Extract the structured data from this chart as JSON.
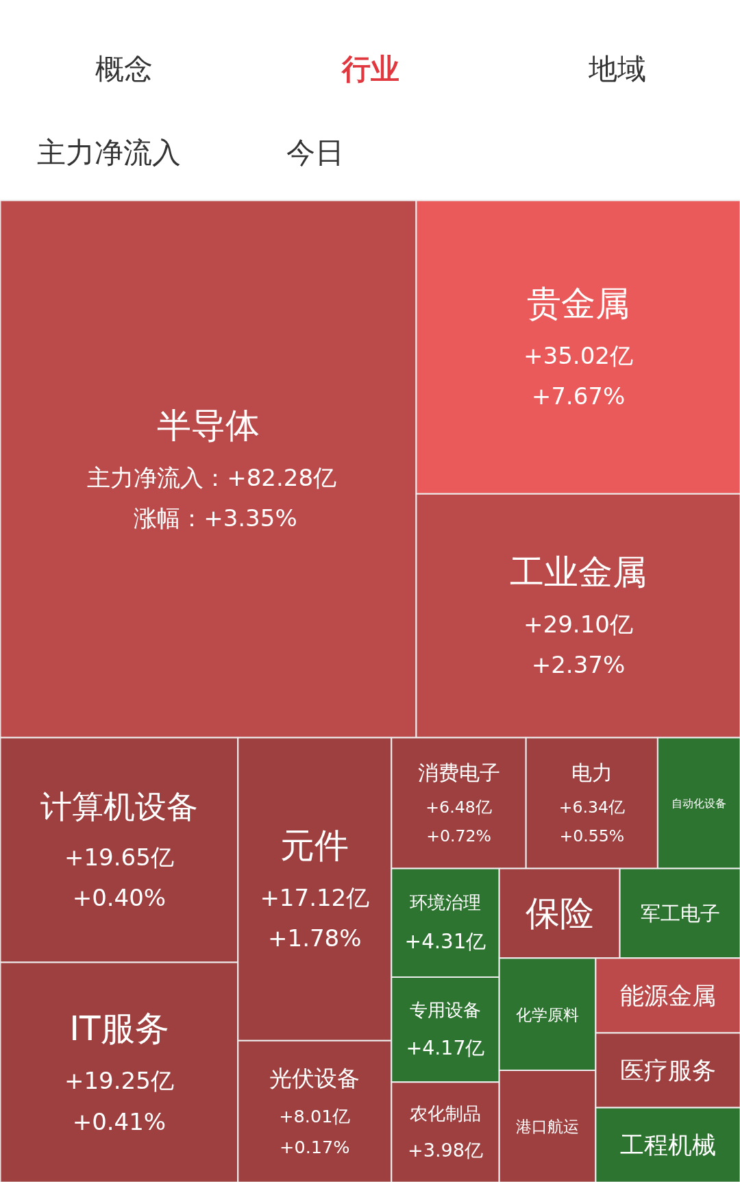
{
  "chart_data": {
    "type": "other",
    "title": "行业",
    "annotations": [
      "概念",
      "地域",
      "主力净流入",
      "今日"
    ],
    "categories": [
      "半导体",
      "贵金属",
      "工业金属",
      "计算机设备",
      "IT服务",
      "元件",
      "光伏设备",
      "消费电子",
      "电力",
      "自动化设备",
      "环境治理",
      "专用设备",
      "农化制品",
      "保险",
      "军工电子",
      "化学原料",
      "港口航运",
      "能源金属",
      "医疗服务",
      "工程机械"
    ],
    "series": [
      {
        "name": "主力净流入：",
        "colors": [
          "#bb4b4b",
          "#ea5a5a",
          "#bb4b4b",
          "#9e4040",
          "#9e4040",
          "#9e4040",
          "#9e4040",
          "#9e4040",
          "#9e4040",
          "#2e7431",
          "#2e7431",
          "#2e7431",
          "#9e4040",
          "#9e4040",
          "#2e7431",
          "#2e7431",
          "#9e4040",
          "#bd4a4a",
          "#9e4040",
          "#2e7431"
        ],
        "values": [
          82.28,
          35.02,
          29.1,
          19.65,
          19.25,
          17.12,
          8.01,
          6.48,
          6.34,
          null,
          4.31,
          4.17,
          3.98,
          null,
          null,
          null,
          null,
          null,
          null,
          null
        ],
        "value_labels": [
          "+82.28亿",
          "+35.02亿",
          "+29.10亿",
          "+19.65亿",
          "+19.25亿",
          "+17.12亿",
          "+8.01亿",
          "+6.48亿",
          "+6.34亿",
          null,
          "+4.31亿",
          "+4.17亿",
          "+3.98亿",
          null,
          null,
          null,
          null,
          null,
          null,
          null
        ]
      },
      {
        "name": "涨幅：",
        "values": [
          3.35,
          7.67,
          2.37,
          0.4,
          0.41,
          1.78,
          0.17,
          0.72,
          0.55,
          null,
          null,
          null,
          null,
          null,
          null,
          null,
          null,
          null,
          null,
          null
        ],
        "value_labels": [
          "+3.35%",
          "+7.67%",
          "+2.37%",
          "+0.40%",
          "+0.41%",
          "+1.78%",
          "+0.17%",
          "+0.72%",
          "+0.55%",
          null,
          null,
          null,
          null,
          null,
          null,
          null,
          null,
          null,
          null,
          null
        ]
      }
    ]
  }
}
